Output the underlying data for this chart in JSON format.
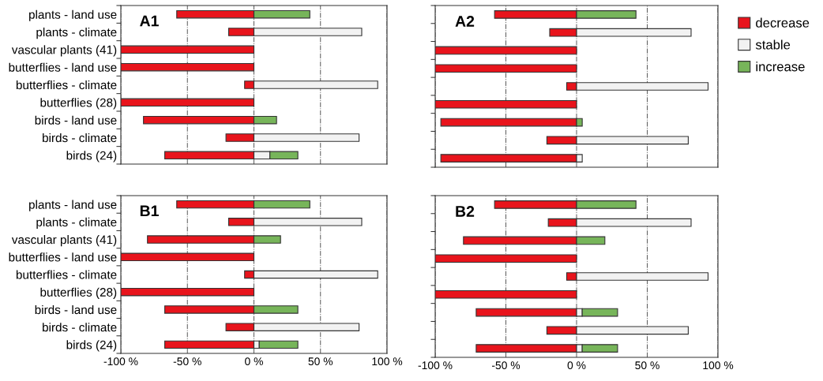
{
  "chart_data": [
    {
      "type": "bar",
      "orientation": "horizontal",
      "stacked": true,
      "annotations": [
        "A1"
      ],
      "categories": [
        "plants - land use",
        "plants - climate",
        "vascular plants (41)",
        "butterflies - land use",
        "butterflies - climate",
        "butterflies (28)",
        "birds - land use",
        "birds - climate",
        "birds (24)"
      ],
      "series": [
        {
          "color": "#e8141c",
          "values": [
            -58,
            -19,
            -100,
            -100,
            -7,
            -100,
            -83,
            -21,
            -67
          ]
        },
        {
          "color": "#f2f2f2",
          "values": [
            null,
            81,
            null,
            null,
            93,
            null,
            null,
            79,
            12
          ]
        },
        {
          "color": "#77b55a",
          "values": [
            42,
            null,
            null,
            null,
            null,
            null,
            17,
            null,
            21
          ]
        }
      ],
      "xlim": [
        -100,
        100
      ],
      "xticks": [
        {
          "value": -100,
          "label": null
        },
        {
          "value": -50,
          "label": null
        },
        {
          "value": 0,
          "label": null
        },
        {
          "value": 50,
          "label": null
        },
        {
          "value": 100,
          "label": null
        }
      ],
      "grid": "x",
      "tick_labels": "y"
    },
    {
      "type": "bar",
      "orientation": "horizontal",
      "stacked": true,
      "annotations": [
        "A2"
      ],
      "categories": [
        null,
        null,
        null,
        null,
        null,
        null,
        null,
        null,
        null
      ],
      "series": [
        {
          "name": "decrease",
          "color": "#e8141c",
          "values": [
            -58,
            -19,
            -100,
            -100,
            -7,
            -100,
            -96,
            -21,
            -96
          ]
        },
        {
          "name": "stable",
          "color": "#f2f2f2",
          "values": [
            null,
            81,
            null,
            null,
            93,
            null,
            null,
            79,
            4
          ]
        },
        {
          "name": "increase",
          "color": "#77b55a",
          "values": [
            42,
            null,
            null,
            null,
            null,
            null,
            4,
            null,
            null
          ]
        }
      ],
      "xlim": [
        -100,
        100
      ],
      "xticks": [
        {
          "value": -100,
          "label": null
        },
        {
          "value": -50,
          "label": null
        },
        {
          "value": 0,
          "label": null
        },
        {
          "value": 50,
          "label": null
        },
        {
          "value": 100,
          "label": null
        }
      ],
      "grid": "x",
      "tick_labels": false,
      "legend": "right"
    },
    {
      "type": "bar",
      "orientation": "horizontal",
      "stacked": true,
      "annotations": [
        "B1"
      ],
      "categories": [
        "plants - land use",
        "plants - climate",
        "vascular plants (41)",
        "butterflies - land use",
        "butterflies - climate",
        "butterflies (28)",
        "birds - land use",
        "birds - climate",
        "birds (24)"
      ],
      "series": [
        {
          "color": "#e8141c",
          "values": [
            -58,
            -19,
            -80,
            -100,
            -7,
            -100,
            -67,
            -21,
            -67
          ]
        },
        {
          "color": "#f2f2f2",
          "values": [
            null,
            81,
            null,
            null,
            93,
            null,
            null,
            79,
            4
          ]
        },
        {
          "color": "#77b55a",
          "values": [
            42,
            null,
            20,
            null,
            null,
            null,
            33,
            null,
            29
          ]
        }
      ],
      "xlim": [
        -100,
        100
      ],
      "xticks": [
        {
          "value": -100,
          "label": "-100 %"
        },
        {
          "value": -50,
          "label": "-50 %"
        },
        {
          "value": 0,
          "label": "0 %"
        },
        {
          "value": 50,
          "label": "50 %"
        },
        {
          "value": 100,
          "label": "100 %"
        }
      ],
      "grid": "x"
    },
    {
      "type": "bar",
      "orientation": "horizontal",
      "stacked": true,
      "annotations": [
        "B2"
      ],
      "categories": [
        null,
        null,
        null,
        null,
        null,
        null,
        null,
        null,
        null
      ],
      "series": [
        {
          "color": "#e8141c",
          "values": [
            -58,
            -20,
            -80,
            -100,
            -7,
            -100,
            -71,
            -21,
            -71
          ]
        },
        {
          "color": "#f2f2f2",
          "values": [
            null,
            81,
            null,
            null,
            93,
            null,
            4,
            79,
            4
          ]
        },
        {
          "color": "#77b55a",
          "values": [
            42,
            null,
            20,
            null,
            null,
            null,
            25,
            null,
            25
          ]
        }
      ],
      "xlim": [
        -100,
        100
      ],
      "xticks": [
        {
          "value": -100,
          "label": "-100 %"
        },
        {
          "value": -50,
          "label": "-50 %"
        },
        {
          "value": 0,
          "label": "0 %"
        },
        {
          "value": 50,
          "label": "50 %"
        },
        {
          "value": 100,
          "label": "100 %"
        }
      ],
      "grid": "x",
      "tick_labels": "x"
    }
  ]
}
